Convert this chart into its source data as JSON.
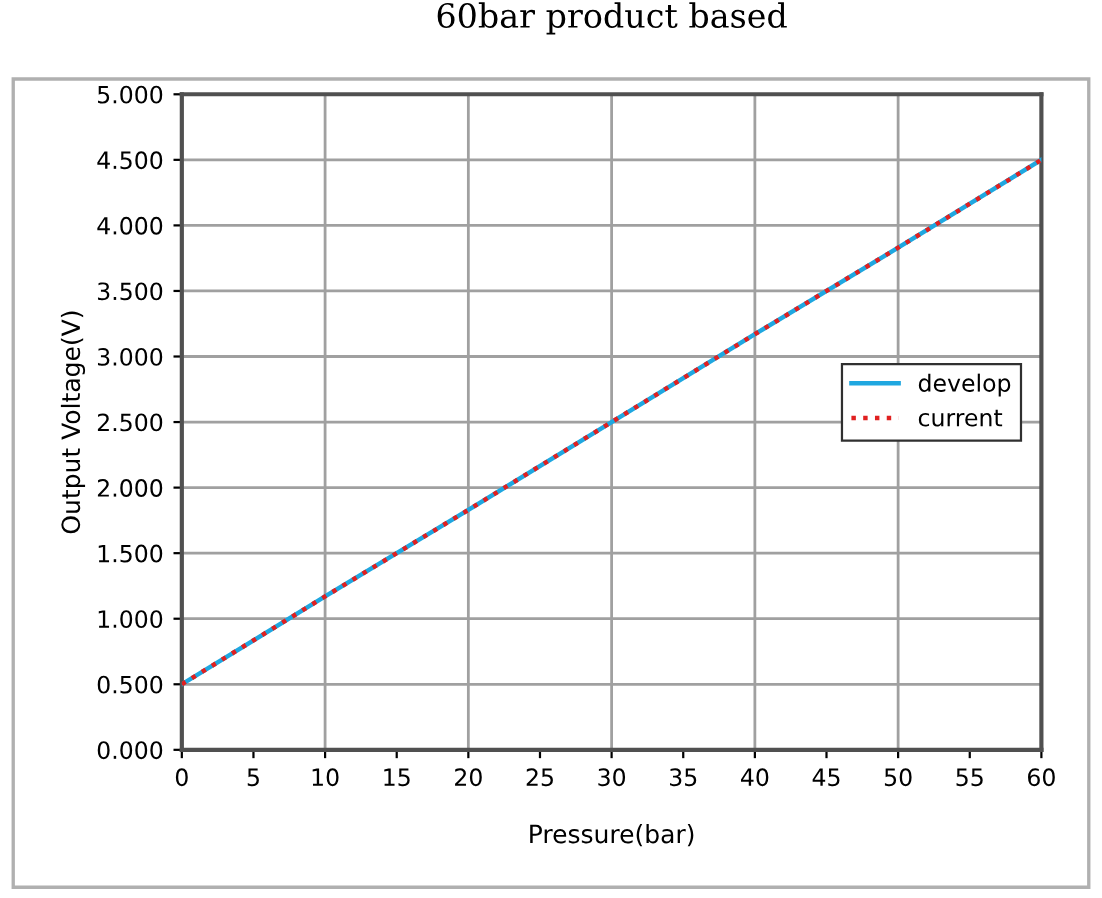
{
  "chart_data": {
    "type": "line",
    "title": "60bar product based",
    "xlabel": "Pressure(bar)",
    "ylabel": "Output Voltage(V)",
    "x": [
      0,
      10,
      20,
      30,
      40,
      50,
      60
    ],
    "series": [
      {
        "name": "develop",
        "color": "#1fa7e0",
        "line_style": "solid",
        "values": [
          0.5,
          1.17,
          1.83,
          2.5,
          3.17,
          3.83,
          4.5
        ]
      },
      {
        "name": "current",
        "color": "#e02020",
        "line_style": "dotted",
        "values": [
          0.5,
          1.17,
          1.83,
          2.5,
          3.17,
          3.83,
          4.5
        ]
      }
    ],
    "xlim": [
      0,
      60
    ],
    "xticks": [
      0,
      5,
      10,
      15,
      20,
      25,
      30,
      35,
      40,
      45,
      50,
      55,
      60
    ],
    "ylim": [
      0,
      5
    ],
    "yticks": [
      {
        "value": 0,
        "label": "0.000"
      },
      {
        "value": 0.5,
        "label": "0.500"
      },
      {
        "value": 1,
        "label": "1.000"
      },
      {
        "value": 1.5,
        "label": "1.500"
      },
      {
        "value": 2,
        "label": "2.000"
      },
      {
        "value": 2.5,
        "label": "2.500"
      },
      {
        "value": 3,
        "label": "3.000"
      },
      {
        "value": 3.5,
        "label": "3.500"
      },
      {
        "value": 4,
        "label": "4.000"
      },
      {
        "value": 4.5,
        "label": "4.500"
      },
      {
        "value": 5,
        "label": "5.000"
      }
    ],
    "grid": true,
    "legend": "right",
    "marker": "none"
  }
}
